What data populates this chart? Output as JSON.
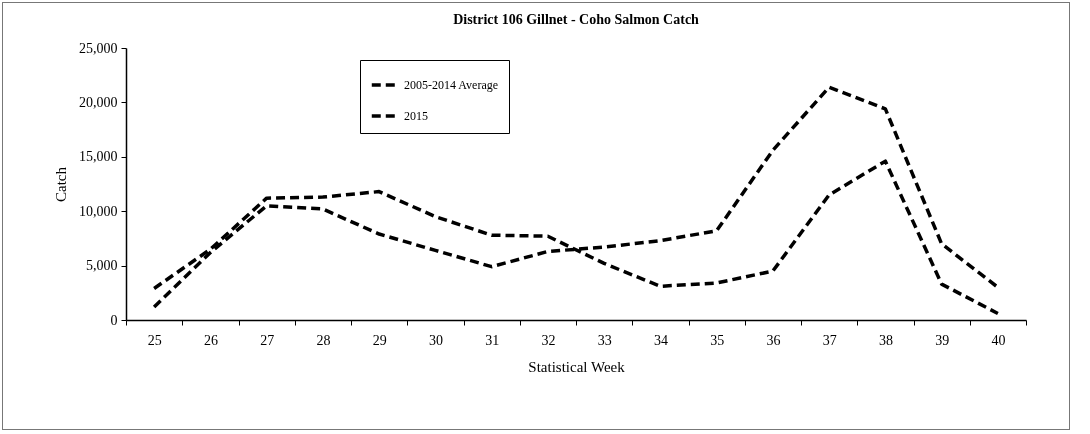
{
  "chart_data": {
    "type": "line",
    "title": "District 106 Gillnet  - Coho Salmon Catch",
    "xlabel": "Statistical Week",
    "ylabel": "Catch",
    "categories": [
      "25",
      "26",
      "27",
      "28",
      "29",
      "30",
      "31",
      "32",
      "33",
      "34",
      "35",
      "36",
      "37",
      "38",
      "39",
      "40"
    ],
    "series": [
      {
        "name": "2005-2014 Average",
        "color": "#000000",
        "line_style": "dashed",
        "values": [
          1200,
          6200,
          10500,
          10200,
          7900,
          6400,
          4900,
          6300,
          6700,
          7300,
          8200,
          15600,
          21400,
          19400,
          7000,
          3000
        ]
      },
      {
        "name": "2015",
        "color": "#000000",
        "line_style": "dashed",
        "values": [
          2900,
          6500,
          11200,
          11300,
          11800,
          9500,
          7800,
          7700,
          5200,
          3100,
          3400,
          4500,
          11500,
          14600,
          3300,
          600
        ]
      }
    ],
    "ylim": [
      0,
      25000
    ],
    "yticks": [
      0,
      {
        "value": 5000,
        "label": "5,000"
      },
      {
        "value": 10000,
        "label": "10,000"
      },
      {
        "value": 15000,
        "label": "15,000"
      },
      {
        "value": 20000,
        "label": "20,000"
      },
      {
        "value": 25000,
        "label": "25,000"
      }
    ],
    "grid": false,
    "legend": "top",
    "marker": "none"
  }
}
